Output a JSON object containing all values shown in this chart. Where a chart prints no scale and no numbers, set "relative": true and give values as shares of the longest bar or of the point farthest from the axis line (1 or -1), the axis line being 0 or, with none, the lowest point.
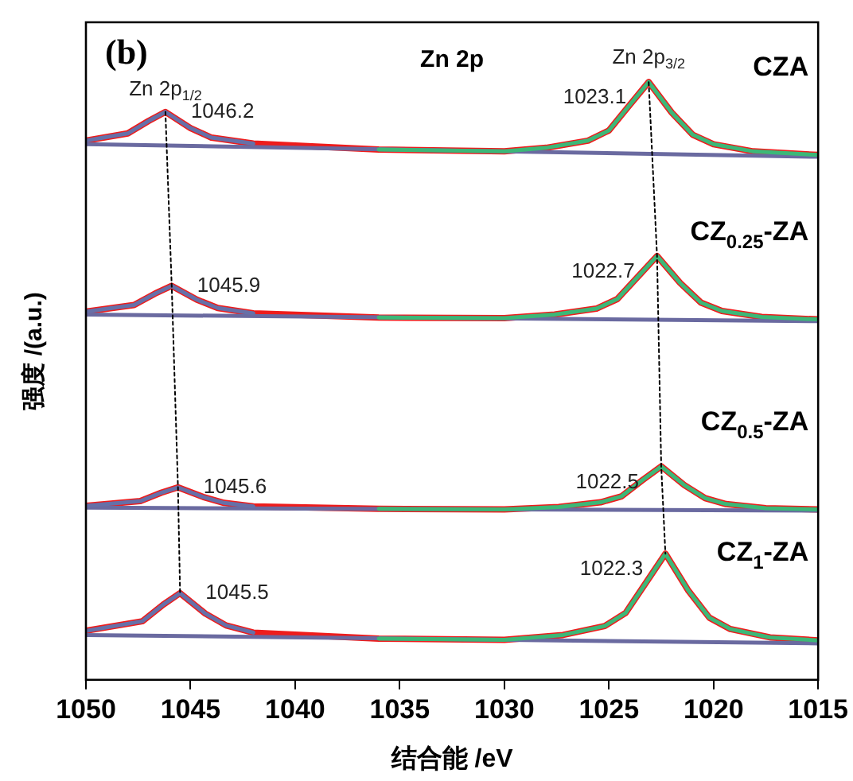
{
  "chart_data": {
    "type": "line",
    "title": "Zn 2p",
    "xlabel": "结合能 /eV",
    "ylabel": "强度 /(a.u.)",
    "relative": true,
    "xlim": [
      1050,
      1015
    ],
    "xticks": [
      1050,
      1045,
      1040,
      1035,
      1030,
      1025,
      1020,
      1015
    ],
    "tick_labels": "x",
    "grid": false,
    "legend": false,
    "marker": "none",
    "line_style": "solid",
    "series": [
      {
        "name": "CZA",
        "color": "#ee1c1c",
        "x": [
          1050,
          1048,
          1047,
          1046.2,
          1045,
          1044,
          1042,
          1036,
          1030,
          1028,
          1026,
          1025,
          1024,
          1023.1,
          1022,
          1021,
          1020,
          1018.1,
          1015
        ],
        "values": [
          0.902,
          0.914,
          0.935,
          0.95,
          0.923,
          0.907,
          0.897,
          0.887,
          0.884,
          0.89,
          0.902,
          0.919,
          0.962,
          1,
          0.949,
          0.912,
          0.896,
          0.884,
          0.878
        ]
      },
      {
        "color": "#6a6aa0",
        "x": [
          1050,
          1015
        ],
        "values": [
          0.896,
          0.875
        ]
      },
      {
        "color": "#3cb878",
        "x": [
          1036,
          1030,
          1028,
          1026,
          1025,
          1024,
          1023.1,
          1022,
          1021,
          1020,
          1018.1,
          1015
        ],
        "values": [
          0.887,
          0.884,
          0.89,
          0.902,
          0.919,
          0.962,
          1,
          0.949,
          0.912,
          0.896,
          0.884,
          0.878
        ]
      },
      {
        "color": "#6670a8",
        "x": [
          1050,
          1048,
          1047,
          1046.2,
          1045,
          1044,
          1042
        ],
        "values": [
          0.902,
          0.914,
          0.935,
          0.95,
          0.923,
          0.907,
          0.897
        ]
      },
      {
        "name": "CZ$_{0.25}$-ZA",
        "color": "#ee1c1c",
        "x": [
          1050,
          1047.7,
          1046.7,
          1045.9,
          1044.7,
          1043.7,
          1042,
          1036,
          1030,
          1027.6,
          1025.6,
          1024.6,
          1023.6,
          1022.7,
          1021.6,
          1020.6,
          1019.6,
          1017.7,
          1015
        ],
        "values": [
          0.616,
          0.627,
          0.646,
          0.659,
          0.636,
          0.622,
          0.613,
          0.606,
          0.605,
          0.611,
          0.621,
          0.637,
          0.675,
          0.709,
          0.664,
          0.631,
          0.617,
          0.607,
          0.603
        ]
      },
      {
        "color": "#6a6aa0",
        "x": [
          1050,
          1015
        ],
        "values": [
          0.611,
          0.6
        ]
      },
      {
        "color": "#3cb878",
        "x": [
          1036,
          1030,
          1027.6,
          1025.6,
          1024.6,
          1023.6,
          1022.7,
          1021.6,
          1020.6,
          1019.6,
          1017.7,
          1015
        ],
        "values": [
          0.606,
          0.605,
          0.611,
          0.621,
          0.637,
          0.675,
          0.709,
          0.664,
          0.631,
          0.617,
          0.607,
          0.603
        ]
      },
      {
        "color": "#6670a8",
        "x": [
          1050,
          1047.7,
          1046.7,
          1045.9,
          1044.7,
          1043.7,
          1042
        ],
        "values": [
          0.616,
          0.627,
          0.646,
          0.659,
          0.636,
          0.622,
          0.613
        ]
      },
      {
        "name": "CZ$_{0.5}$-ZA",
        "color": "#ee1c1c",
        "x": [
          1050,
          1047.4,
          1046.4,
          1045.6,
          1044.4,
          1043.4,
          1042,
          1036,
          1030,
          1027.4,
          1025.4,
          1024.4,
          1023.4,
          1022.5,
          1021.4,
          1020.4,
          1019.4,
          1017.5,
          1015
        ],
        "values": [
          0.291,
          0.299,
          0.313,
          0.322,
          0.306,
          0.296,
          0.29,
          0.286,
          0.285,
          0.289,
          0.297,
          0.307,
          0.334,
          0.357,
          0.326,
          0.304,
          0.294,
          0.287,
          0.285
        ]
      },
      {
        "color": "#6a6aa0",
        "x": [
          1050,
          1015
        ],
        "values": [
          0.288,
          0.283
        ]
      },
      {
        "color": "#3cb878",
        "x": [
          1036,
          1030,
          1027.4,
          1025.4,
          1024.4,
          1023.4,
          1022.5,
          1021.4,
          1020.4,
          1019.4,
          1017.5,
          1015
        ],
        "values": [
          0.286,
          0.285,
          0.289,
          0.297,
          0.307,
          0.334,
          0.357,
          0.326,
          0.304,
          0.294,
          0.287,
          0.285
        ]
      },
      {
        "color": "#6670a8",
        "x": [
          1050,
          1047.4,
          1046.4,
          1045.6,
          1044.4,
          1043.4,
          1042
        ],
        "values": [
          0.291,
          0.299,
          0.313,
          0.322,
          0.306,
          0.296,
          0.29
        ]
      },
      {
        "name": "CZ$_{1}$-ZA",
        "color": "#ee1c1c",
        "x": [
          1050,
          1047.3,
          1046.3,
          1045.5,
          1044.3,
          1043.3,
          1042,
          1036,
          1030,
          1027.2,
          1025.2,
          1024.2,
          1023.2,
          1022.3,
          1021.2,
          1020.2,
          1019.2,
          1017.3,
          1015
        ],
        "values": [
          0.082,
          0.098,
          0.126,
          0.145,
          0.111,
          0.091,
          0.079,
          0.069,
          0.067,
          0.075,
          0.09,
          0.112,
          0.164,
          0.211,
          0.149,
          0.104,
          0.085,
          0.071,
          0.066
        ]
      },
      {
        "color": "#6a6aa0",
        "x": [
          1050,
          1015
        ],
        "values": [
          0.075,
          0.061
        ]
      },
      {
        "color": "#3cb878",
        "x": [
          1036,
          1030,
          1027.2,
          1025.2,
          1024.2,
          1023.2,
          1022.3,
          1021.2,
          1020.2,
          1019.2,
          1017.3,
          1015
        ],
        "values": [
          0.069,
          0.067,
          0.075,
          0.09,
          0.112,
          0.164,
          0.211,
          0.149,
          0.104,
          0.085,
          0.071,
          0.066
        ]
      },
      {
        "color": "#6670a8",
        "x": [
          1050,
          1047.3,
          1046.3,
          1045.5,
          1044.3,
          1043.3,
          1042
        ],
        "values": [
          0.082,
          0.098,
          0.126,
          0.145,
          0.111,
          0.091,
          0.079
        ]
      },
      {
        "color": "#000000",
        "line_style": "dotted",
        "x": [
          1046.2,
          1045.9,
          1045.6,
          1045.5
        ],
        "values": [
          0.95,
          0.659,
          0.322,
          0.145
        ]
      },
      {
        "color": "#000000",
        "line_style": "dotted",
        "x": [
          1023.1,
          1022.7,
          1022.5,
          1022.3
        ],
        "values": [
          1,
          0.709,
          0.357,
          0.211
        ]
      }
    ],
    "annotations": [
      "(b)",
      {
        "text": "Zn 2p$_{1/2}$",
        "x": 1046.2,
        "y": 0.95
      },
      {
        "text": "Zn 2p$_{3/2}$",
        "x": 1023.1,
        "y": 1
      },
      {
        "text": "1046.2",
        "x": 1046.2,
        "y": 0.95
      },
      {
        "text": "1023.1",
        "x": 1023.1,
        "y": 1
      },
      {
        "text": "1045.9",
        "x": 1045.9,
        "y": 0.659
      },
      {
        "text": "1022.7",
        "x": 1022.7,
        "y": 0.709
      },
      {
        "text": "1045.6",
        "x": 1045.6,
        "y": 0.322
      },
      {
        "text": "1022.5",
        "x": 1022.5,
        "y": 0.357
      },
      {
        "text": "1045.5",
        "x": 1045.5,
        "y": 0.145
      },
      {
        "text": "1022.3",
        "x": 1022.3,
        "y": 0.211
      }
    ]
  }
}
